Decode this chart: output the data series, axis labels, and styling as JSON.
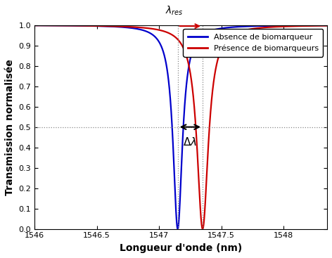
{
  "lambda_blue": 1547.15,
  "lambda_red": 1547.35,
  "gamma_blue": 0.045,
  "gamma_red": 0.055,
  "xlim": [
    1546,
    1548.35
  ],
  "ylim": [
    0,
    1.0
  ],
  "xlabel": "Longueur d'onde (nm)",
  "ylabel": "Transmission normalisée",
  "legend_labels": [
    "Absence de biomarqueur",
    "Présence de biomarqueurs"
  ],
  "line_colors": [
    "#0000cc",
    "#cc0000"
  ],
  "yticks": [
    0,
    0.1,
    0.2,
    0.3,
    0.4,
    0.5,
    0.6,
    0.7,
    0.8,
    0.9,
    1.0
  ],
  "xticks": [
    1546,
    1546.5,
    1547,
    1547.5,
    1548
  ],
  "dashed_color": "#888888",
  "bg_color": "#ffffff",
  "figsize": [
    4.72,
    3.67
  ],
  "dpi": 100
}
